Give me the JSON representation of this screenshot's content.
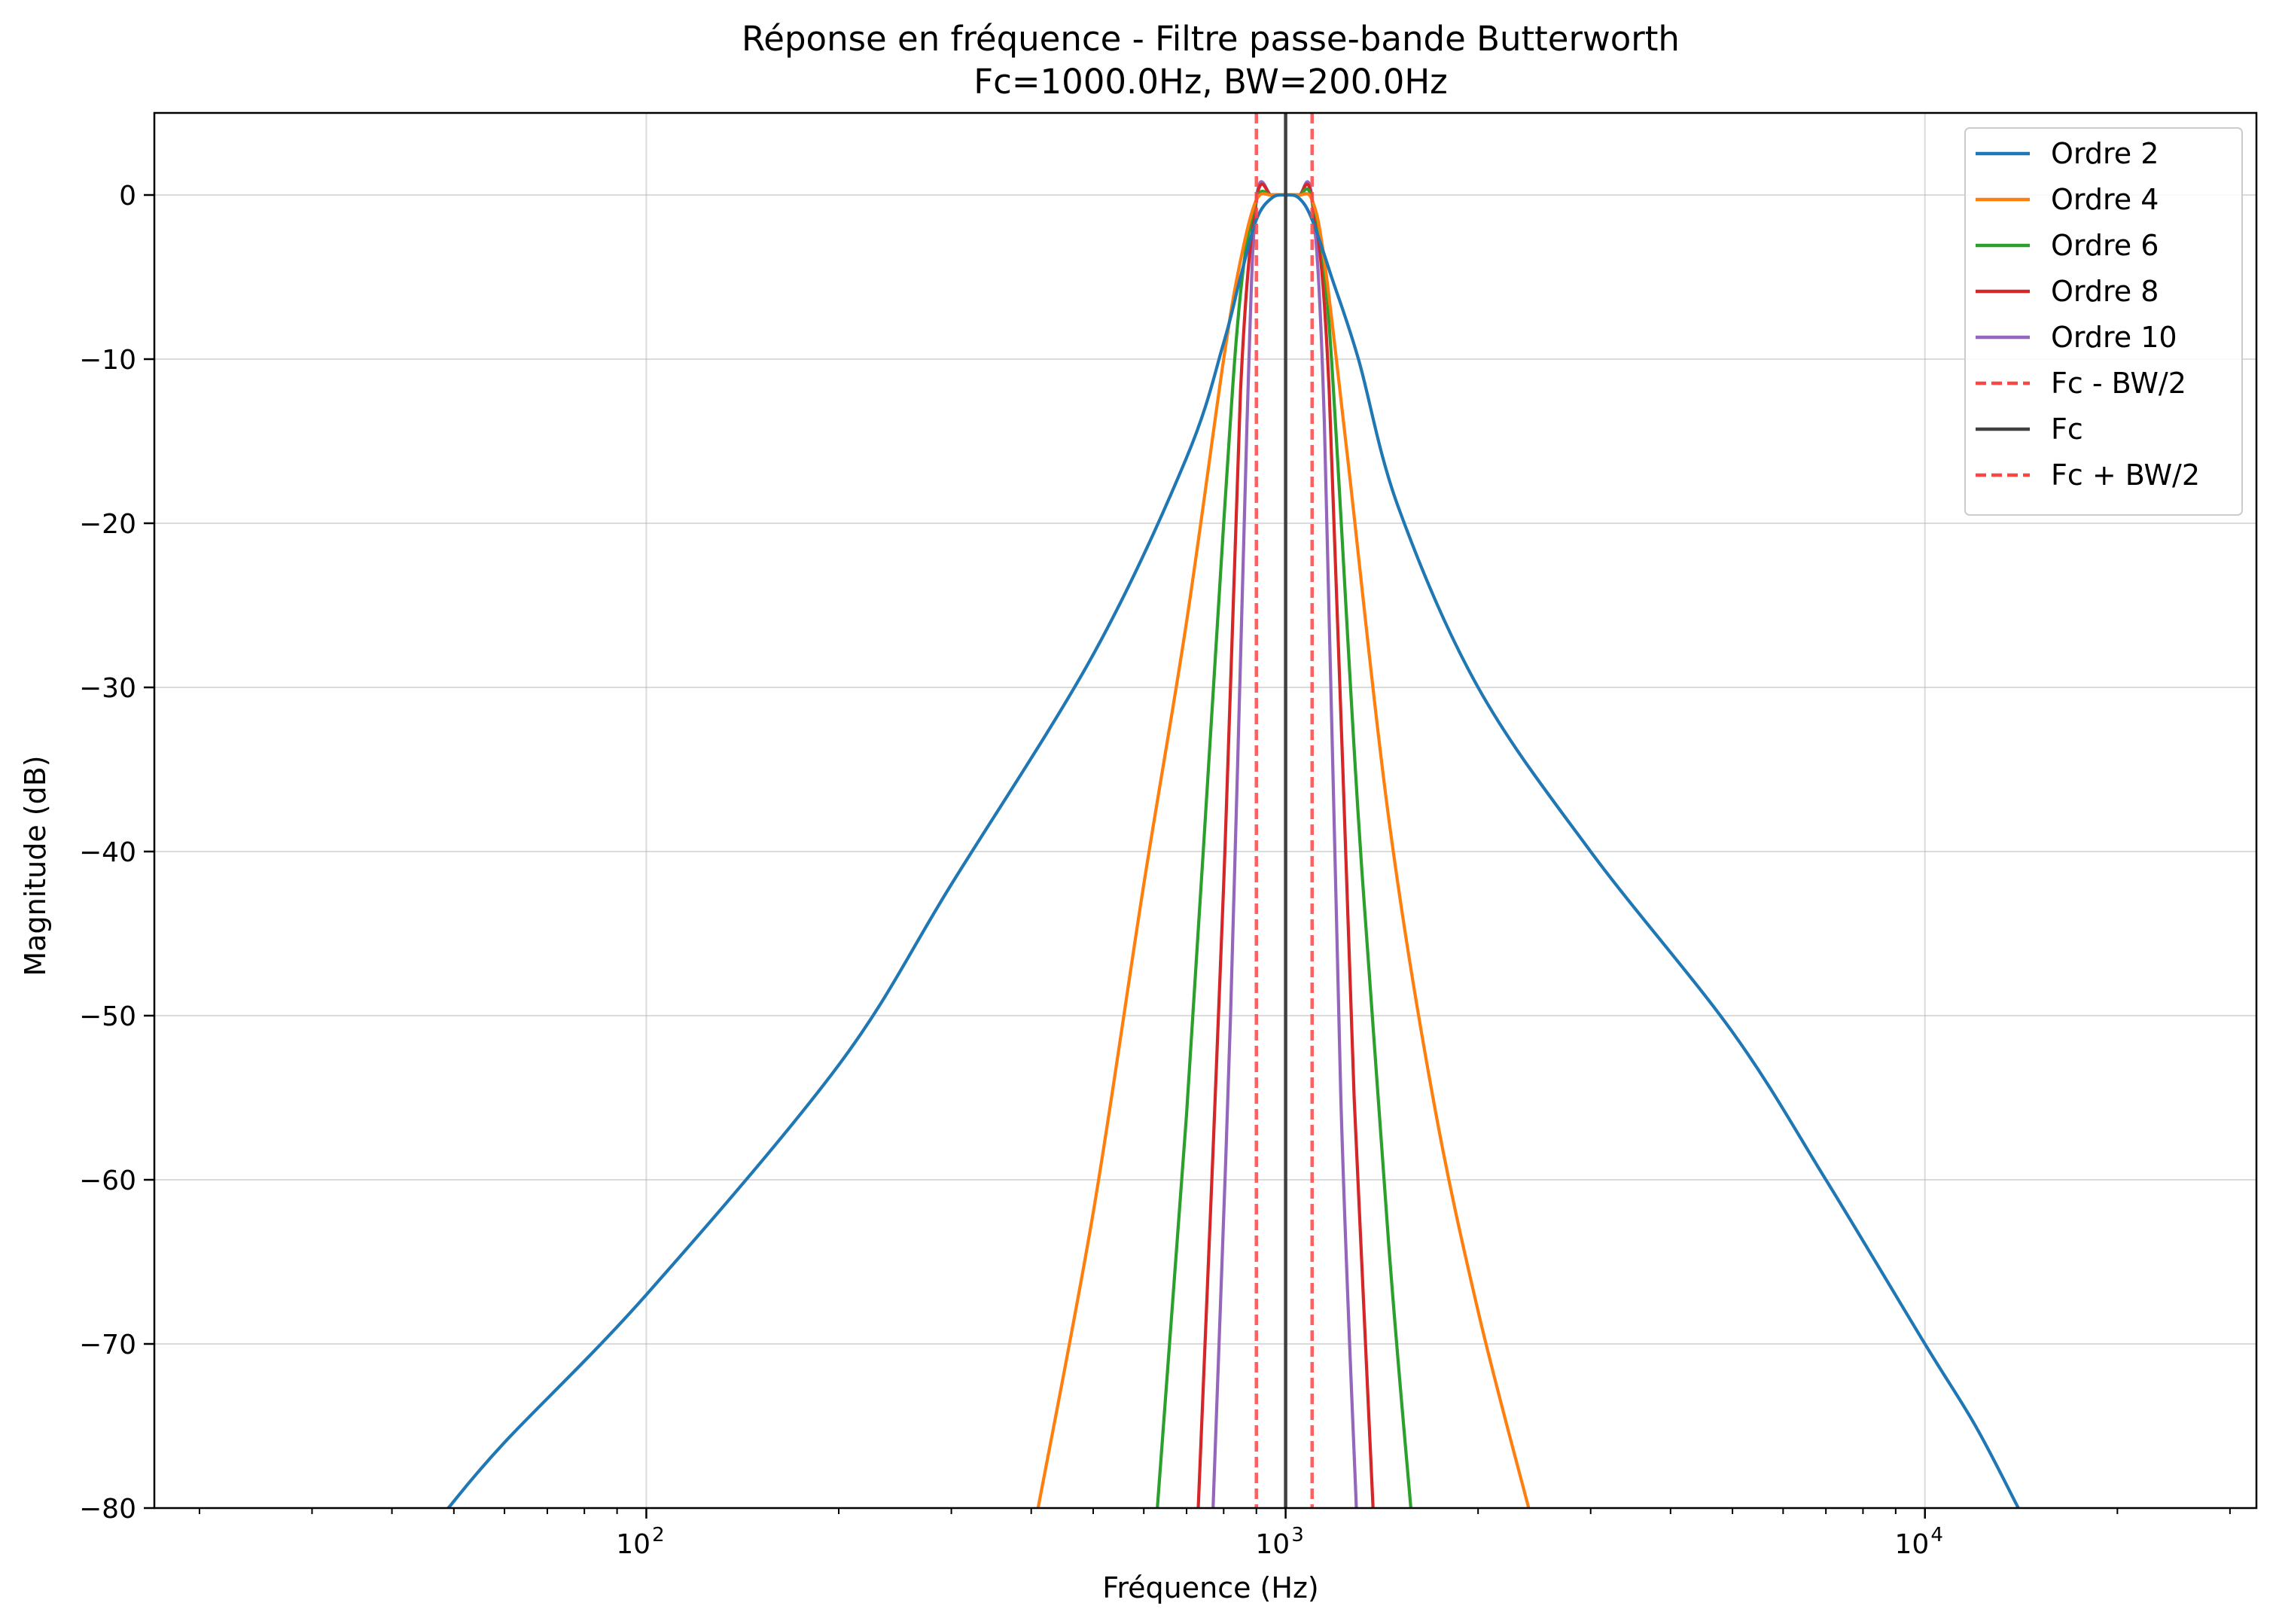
{
  "chart_data": {
    "type": "line",
    "title": "Réponse en fréquence - Filtre passe-bande Butterworth",
    "subtitle": "Fc=1000.0Hz, BW=200.0Hz",
    "xlabel": "Fréquence (Hz)",
    "ylabel": "Magnitude (dB)",
    "xscale": "log",
    "xlim": [
      17,
      33000
    ],
    "ylim": [
      -80,
      5
    ],
    "grid": true,
    "legend_position": "top-right",
    "x_ticks": [
      {
        "value": 100,
        "base": "10",
        "exp": "2"
      },
      {
        "value": 1000,
        "base": "10",
        "exp": "3"
      },
      {
        "value": 10000,
        "base": "10",
        "exp": "4"
      }
    ],
    "y_ticks": [
      {
        "value": 0,
        "label": "0"
      },
      {
        "value": -10,
        "label": "−10"
      },
      {
        "value": -20,
        "label": "−20"
      },
      {
        "value": -30,
        "label": "−30"
      },
      {
        "value": -40,
        "label": "−40"
      },
      {
        "value": -50,
        "label": "−50"
      },
      {
        "value": -60,
        "label": "−60"
      },
      {
        "value": -70,
        "label": "−70"
      },
      {
        "value": -80,
        "label": "−80"
      }
    ],
    "series": [
      {
        "name": "Ordre 2",
        "color": "#1f77b4",
        "x": [
          49,
          60,
          100,
          200,
          300,
          500,
          700,
          800,
          850,
          900,
          950,
          1000,
          1050,
          1100,
          1180,
          1300,
          1500,
          2000,
          3000,
          5000,
          7000,
          10000,
          12000,
          14000
        ],
        "y": [
          -80,
          -76,
          -67,
          -53,
          -42,
          -28,
          -16,
          -9,
          -5,
          -1.5,
          -0.2,
          0,
          -0.2,
          -1.5,
          -5,
          -10,
          -19,
          -30,
          -40,
          -51,
          -60,
          -70,
          -75,
          -80
        ]
      },
      {
        "name": "Ordre 4",
        "color": "#ff7f0e",
        "x": [
          410,
          500,
          600,
          700,
          800,
          850,
          900,
          950,
          1000,
          1050,
          1100,
          1150,
          1250,
          1450,
          1700,
          2000,
          2400
        ],
        "y": [
          -80,
          -62,
          -42,
          -26,
          -10,
          -4,
          -0.3,
          0,
          0,
          0,
          -0.3,
          -4,
          -16,
          -38,
          -55,
          -68,
          -80
        ]
      },
      {
        "name": "Ordre 6",
        "color": "#2ca02c",
        "x": [
          630,
          700,
          800,
          850,
          900,
          950,
          1000,
          1050,
          1100,
          1170,
          1300,
          1450,
          1570
        ],
        "y": [
          -80,
          -56,
          -20,
          -6,
          -0.3,
          0,
          0,
          0,
          -0.3,
          -8,
          -38,
          -64,
          -80
        ]
      },
      {
        "name": "Ordre 8",
        "color": "#d62728",
        "x": [
          730,
          800,
          850,
          900,
          950,
          1000,
          1050,
          1100,
          1170,
          1280,
          1370
        ],
        "y": [
          -80,
          -42,
          -12,
          -0.3,
          0,
          0,
          0,
          -0.3,
          -12,
          -55,
          -80
        ]
      },
      {
        "name": "Ordre 10",
        "color": "#9467bd",
        "x": [
          770,
          820,
          870,
          900,
          950,
          1000,
          1050,
          1100,
          1150,
          1220,
          1290
        ],
        "y": [
          -80,
          -50,
          -14,
          -0.3,
          0,
          0,
          0,
          -0.3,
          -14,
          -55,
          -80
        ]
      }
    ],
    "vlines": [
      {
        "name": "Fc - BW/2",
        "x": 900,
        "color": "#ff4444",
        "dash": true
      },
      {
        "name": "Fc",
        "x": 1000,
        "color": "#404040",
        "dash": false
      },
      {
        "name": "Fc + BW/2",
        "x": 1100,
        "color": "#ff4444",
        "dash": true
      }
    ]
  }
}
